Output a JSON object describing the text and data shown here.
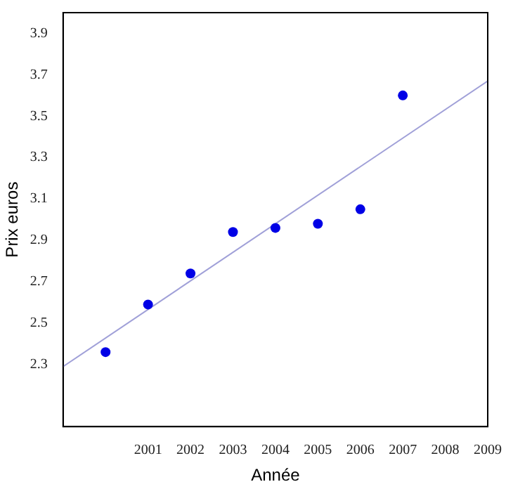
{
  "chart_data": {
    "type": "scatter",
    "xlabel": "Année",
    "ylabel": "Prix euros",
    "xlim": [
      1999,
      2009
    ],
    "xticks": [
      2001,
      2002,
      2003,
      2004,
      2005,
      2006,
      2007,
      2008,
      2009
    ],
    "ylim": [
      2.0,
      4.0
    ],
    "yticks": [
      2.3,
      2.5,
      2.7,
      2.9,
      3.1,
      3.3,
      3.5,
      3.7,
      3.9
    ],
    "grid": false,
    "legend": false,
    "marker": "circle",
    "series": [
      {
        "type": "scatter",
        "color": "#0000e6",
        "x": [
          2000,
          2001,
          2002,
          2003,
          2004,
          2005,
          2006,
          2007
        ],
        "values": [
          2.36,
          2.59,
          2.74,
          2.94,
          2.96,
          2.98,
          3.05,
          3.6
        ]
      },
      {
        "type": "line",
        "color": "#a0a0d8",
        "marker": "none",
        "x": [
          1999,
          2009
        ],
        "values": [
          2.29,
          3.67
        ]
      }
    ]
  }
}
